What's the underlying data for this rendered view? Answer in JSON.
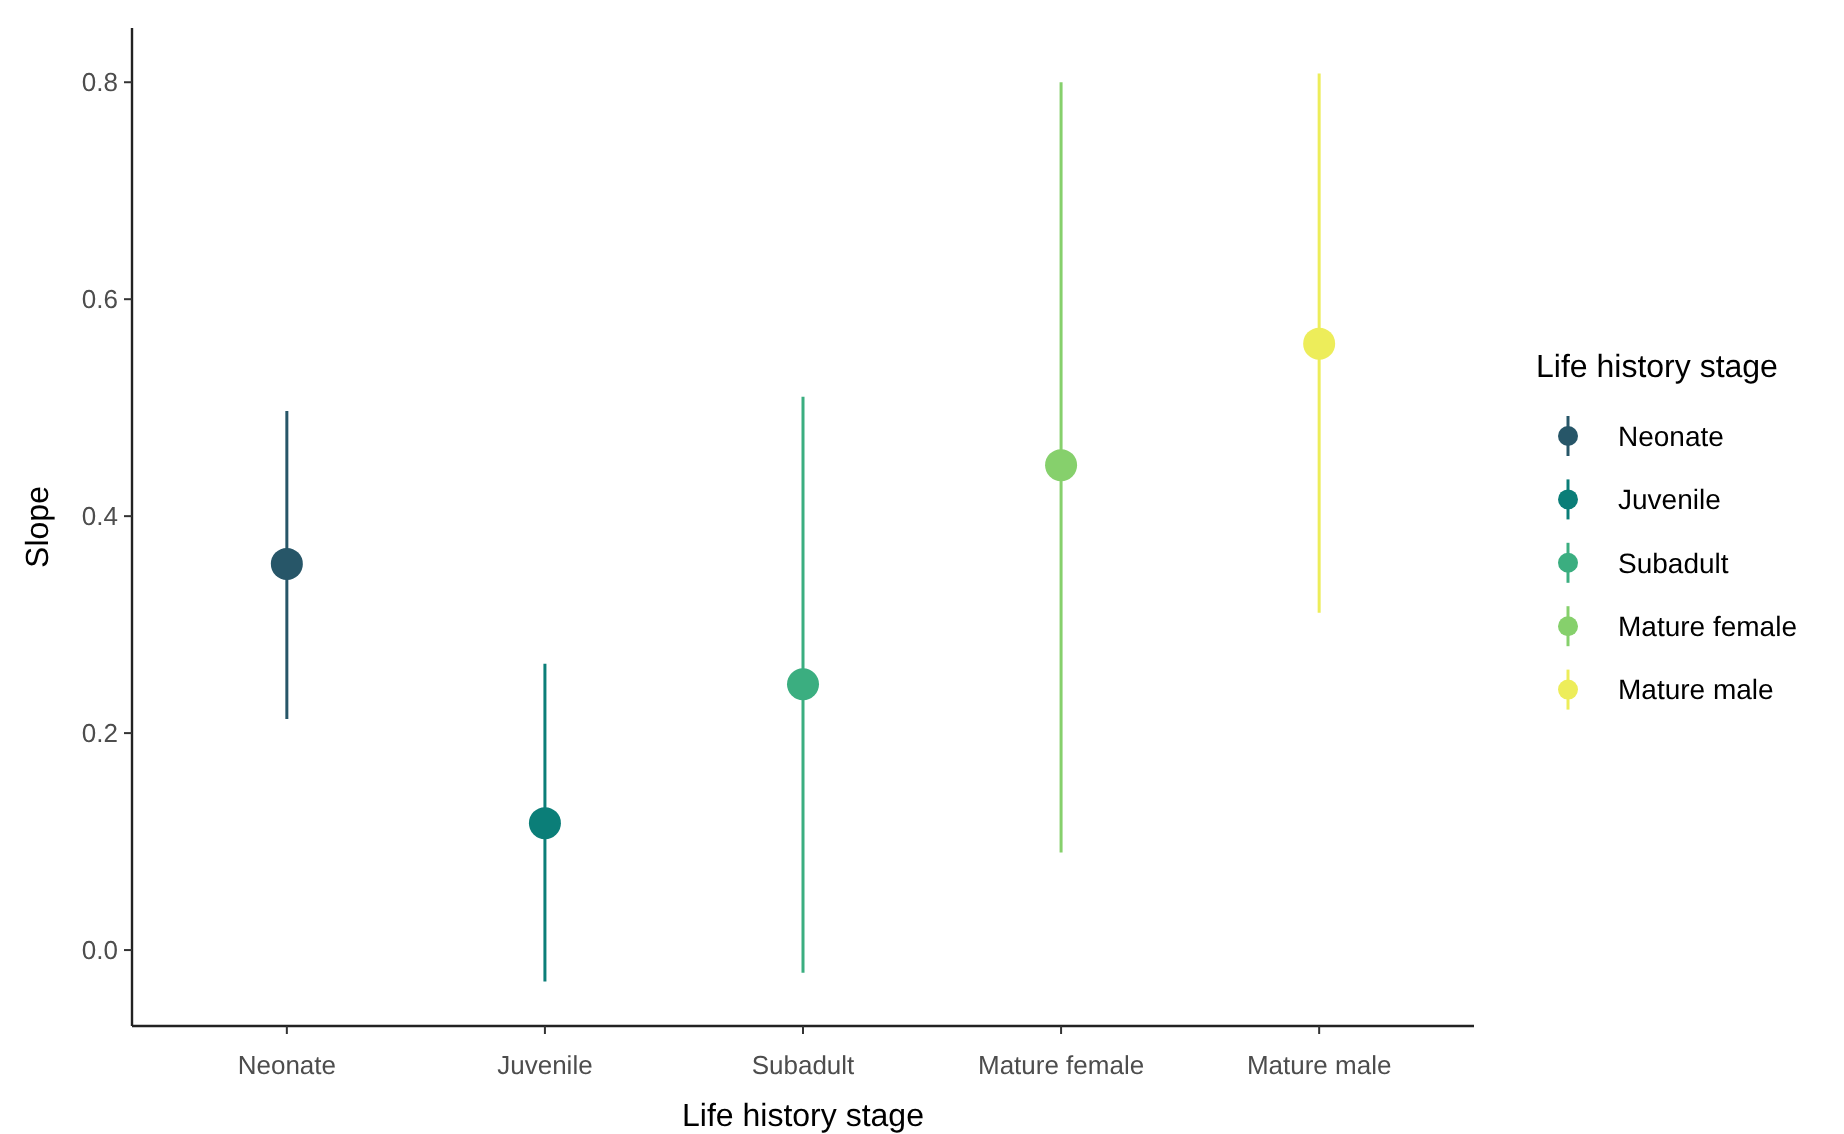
{
  "chart_data": {
    "type": "scatter",
    "xlabel": "Life history stage",
    "ylabel": "Slope",
    "legend_title": "Life history stage",
    "categories": [
      "Neonate",
      "Juvenile",
      "Subadult",
      "Mature female",
      "Mature male"
    ],
    "series": [
      {
        "name": "Neonate",
        "color": "#275668",
        "values": [
          0.356,
          null,
          null,
          null,
          null
        ],
        "errors": [
          [
            0.213,
            0.497
          ],
          null,
          null,
          null,
          null
        ]
      },
      {
        "name": "Juvenile",
        "color": "#0b7e78",
        "values": [
          null,
          0.117,
          null,
          null,
          null
        ],
        "errors": [
          null,
          [
            -0.029,
            0.264
          ],
          null,
          null,
          null
        ]
      },
      {
        "name": "Subadult",
        "color": "#3bae80",
        "values": [
          null,
          null,
          0.245,
          null,
          null
        ],
        "errors": [
          null,
          null,
          [
            -0.021,
            0.51
          ],
          null,
          null
        ]
      },
      {
        "name": "Mature female",
        "color": "#86d06c",
        "values": [
          null,
          null,
          null,
          0.447,
          null
        ],
        "errors": [
          null,
          null,
          null,
          [
            0.09,
            0.8
          ],
          null
        ]
      },
      {
        "name": "Mature male",
        "color": "#eded5a",
        "values": [
          null,
          null,
          null,
          null,
          0.559
        ],
        "errors": [
          null,
          null,
          null,
          null,
          [
            0.311,
            0.808
          ]
        ]
      }
    ],
    "ylim": [
      -0.07,
      0.85
    ],
    "yticks": [
      {
        "value": 0,
        "label": "0.0"
      },
      0.2,
      0.4,
      0.6,
      0.8
    ],
    "grid": false,
    "legend": "right",
    "marker": "circle"
  }
}
